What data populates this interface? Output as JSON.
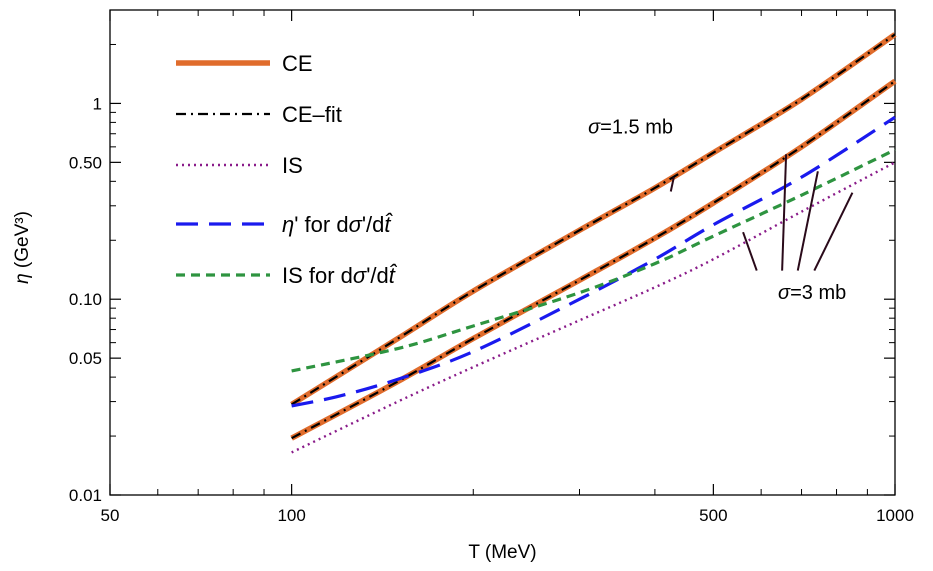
{
  "chart_data": {
    "type": "line",
    "xlabel": "T (MeV)",
    "ylabel": "η (GeV³)",
    "xscale": "log",
    "yscale": "log",
    "xlim": [
      50,
      1000
    ],
    "ylim": [
      0.01,
      3
    ],
    "grid": false,
    "legend_position": "top-left",
    "x_ticks": [
      {
        "value": 50,
        "label": "50"
      },
      {
        "value": 100,
        "label": "100"
      },
      {
        "value": 500,
        "label": "500"
      },
      {
        "value": 1000,
        "label": "1000"
      }
    ],
    "y_ticks": [
      {
        "value": 0.01,
        "label": "0.01"
      },
      {
        "value": 0.05,
        "label": "0.05"
      },
      {
        "value": 0.1,
        "label": "0.10"
      },
      {
        "value": 0.5,
        "label": "0.50"
      },
      {
        "value": 1,
        "label": "1"
      }
    ],
    "x_minor_ticks": [
      60,
      70,
      80,
      90,
      200,
      300,
      400,
      600,
      700,
      800,
      900
    ],
    "y_minor_ticks": [
      0.02,
      0.03,
      0.04,
      0.06,
      0.07,
      0.08,
      0.09,
      0.2,
      0.3,
      0.4,
      0.6,
      0.7,
      0.8,
      0.9,
      2
    ],
    "legend": [
      {
        "key": "ce",
        "label": "CE"
      },
      {
        "key": "cefit",
        "label": "CE–fit"
      },
      {
        "key": "is",
        "label": "IS"
      },
      {
        "key": "etap",
        "label_parts": [
          "η",
          "' for d",
          "σ",
          "'/d",
          "t̂"
        ]
      },
      {
        "key": "isd",
        "label_parts": [
          "IS for d",
          "σ",
          "'/d",
          "t̂"
        ]
      }
    ],
    "series": [
      {
        "key": "ce_1p5",
        "style": "ce",
        "color": "#e06c2c",
        "x": [
          100,
          150,
          200,
          300,
          400,
          500,
          700,
          1000
        ],
        "y": [
          0.029,
          0.063,
          0.11,
          0.225,
          0.37,
          0.56,
          1.05,
          2.25
        ]
      },
      {
        "key": "cefit_1p5",
        "style": "cefit",
        "color": "#000000",
        "x": [
          100,
          150,
          200,
          300,
          400,
          500,
          700,
          1000
        ],
        "y": [
          0.029,
          0.063,
          0.11,
          0.225,
          0.37,
          0.56,
          1.05,
          2.25
        ]
      },
      {
        "key": "ce_3",
        "style": "ce",
        "color": "#e06c2c",
        "x": [
          100,
          150,
          200,
          300,
          400,
          500,
          700,
          1000
        ],
        "y": [
          0.0195,
          0.038,
          0.063,
          0.125,
          0.205,
          0.31,
          0.6,
          1.3
        ]
      },
      {
        "key": "cefit_3",
        "style": "cefit",
        "color": "#000000",
        "x": [
          100,
          150,
          200,
          300,
          400,
          500,
          700,
          1000
        ],
        "y": [
          0.0195,
          0.038,
          0.063,
          0.125,
          0.205,
          0.31,
          0.6,
          1.3
        ]
      },
      {
        "key": "is_3",
        "style": "is",
        "color": "#8a1c8a",
        "x": [
          100,
          150,
          200,
          300,
          400,
          500,
          700,
          1000
        ],
        "y": [
          0.0165,
          0.03,
          0.045,
          0.078,
          0.115,
          0.16,
          0.28,
          0.5
        ]
      },
      {
        "key": "etap_3",
        "style": "etap",
        "color": "#1a1aee",
        "x": [
          100,
          120,
          150,
          200,
          300,
          400,
          500,
          700,
          1000
        ],
        "y": [
          0.0285,
          0.032,
          0.039,
          0.054,
          0.1,
          0.16,
          0.24,
          0.42,
          0.85
        ]
      },
      {
        "key": "isd_3",
        "style": "isd",
        "color": "#2e9440",
        "x": [
          100,
          150,
          200,
          300,
          400,
          500,
          700,
          1000
        ],
        "y": [
          0.043,
          0.056,
          0.073,
          0.108,
          0.152,
          0.21,
          0.34,
          0.58
        ]
      }
    ],
    "annotations": [
      {
        "key": "s15",
        "parts": [
          "σ",
          "=1.5 mb"
        ],
        "text_at": [
          310,
          0.7
        ],
        "leaders": [
          {
            "from": [
              430,
              0.42
            ],
            "to": [
              425,
              0.355
            ]
          }
        ]
      },
      {
        "key": "s3",
        "parts": [
          "σ",
          "=3 mb"
        ],
        "text_at": [
          640,
          0.1
        ],
        "leaders": [
          {
            "from": [
              560,
              0.22
            ],
            "to": [
              590,
              0.14
            ]
          },
          {
            "from": [
              660,
              0.55
            ],
            "to": [
              650,
              0.14
            ]
          },
          {
            "from": [
              745,
              0.45
            ],
            "to": [
              690,
              0.14
            ]
          },
          {
            "from": [
              850,
              0.35
            ],
            "to": [
              735,
              0.14
            ]
          }
        ]
      }
    ]
  }
}
